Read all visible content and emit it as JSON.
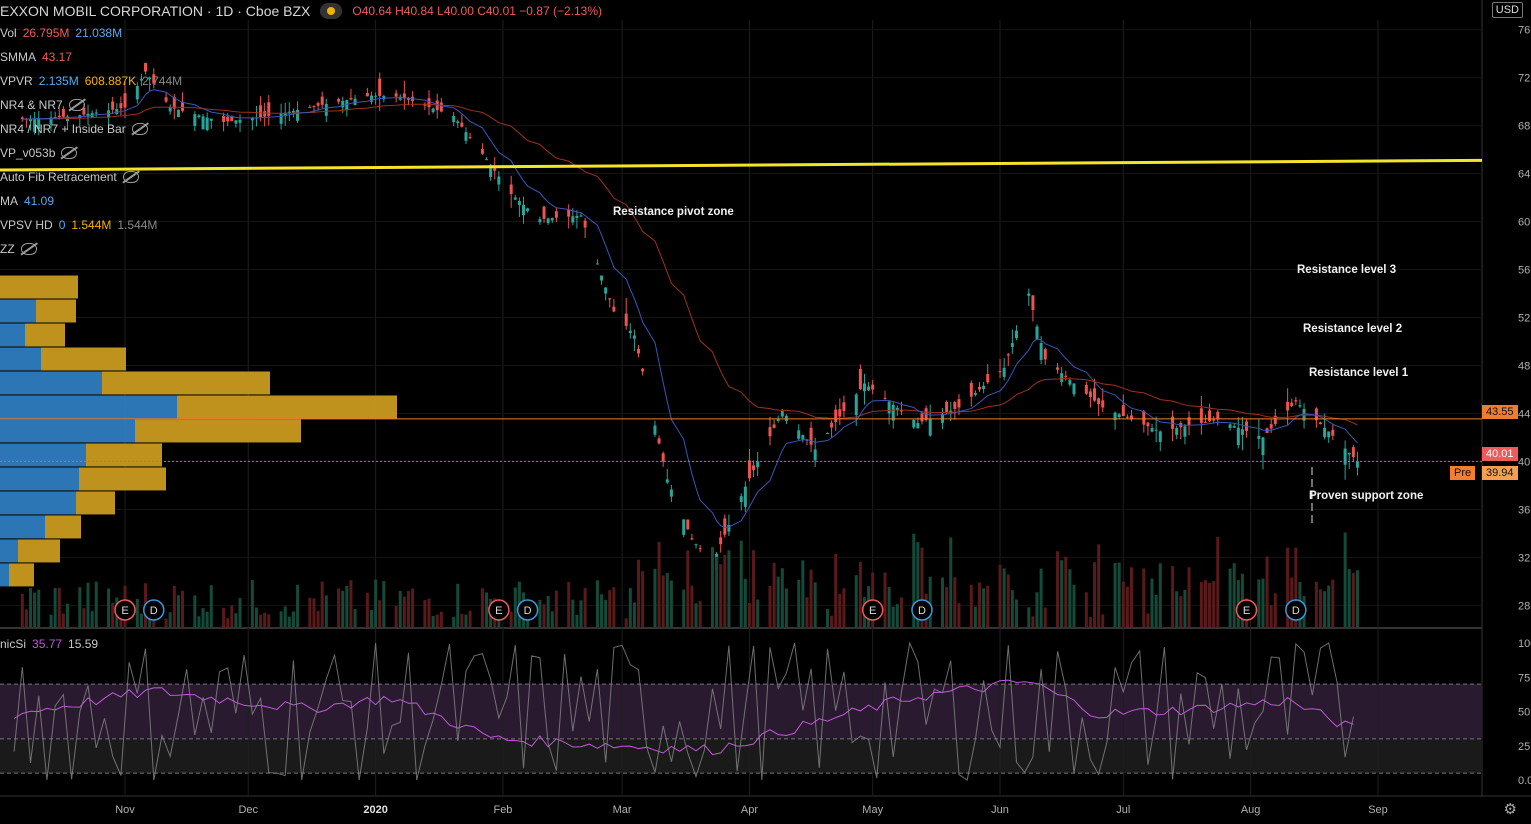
{
  "header": {
    "symbol": "EXXON MOBIL CORPORATION · 1D · Cboe BZX",
    "ohlc_open": "O40.64",
    "ohlc_high": "H40.84",
    "ohlc_low": "L40.00",
    "ohlc_close": "C40.01",
    "change": "−0.87 (−2.13%)",
    "currency": "USD"
  },
  "indicators": [
    {
      "name": "Vol",
      "v1": "26.795M",
      "v2": "21.038M",
      "c1": "#f05a5a",
      "c2": "#5aa8f0"
    },
    {
      "name": "SMMA",
      "v1": "43.17",
      "v2": "",
      "c1": "#f05a5a",
      "c2": ""
    },
    {
      "name": "VPVR",
      "v1": "2.135M",
      "v2": "608.887K",
      "v3": "2.744M",
      "c1": "#5aa8f0",
      "c2": "#f0b400"
    },
    {
      "name": "NR4 & NR7"
    },
    {
      "name": "NR4 / NR7 + Inside Bar"
    },
    {
      "name": "VP_v053b"
    },
    {
      "name": "Auto Fib Retracement"
    },
    {
      "name": "MA",
      "v1": "41.09",
      "c1": "#5aa8f0"
    },
    {
      "name": "VPSV HD",
      "v1": "0",
      "v2": "1.544M",
      "v3": "1.544M",
      "c1": "#5aa8f0",
      "c2": "#f0b400"
    },
    {
      "name": "ZZ"
    }
  ],
  "annotations": {
    "pivot": "Resistance pivot zone",
    "r3": "Resistance level 3",
    "r2": "Resistance level 2",
    "r1": "Resistance level 1",
    "support": "Proven support zone"
  },
  "price_tags": {
    "resistance": "43.55",
    "last": "40.01",
    "pre_label": "Pre",
    "pre_value": "39.94"
  },
  "osc": {
    "name": "nicSi",
    "v1": "35.77",
    "v2": "15.59"
  },
  "event_markers": [
    {
      "label": "E",
      "date": "2019-11-01",
      "color": "#f05a5a"
    },
    {
      "label": "D",
      "date": "2019-11-08",
      "color": "#3a9ad9"
    },
    {
      "label": "E",
      "date": "2020-01-31",
      "color": "#f05a5a"
    },
    {
      "label": "D",
      "date": "2020-02-07",
      "color": "#3a9ad9"
    },
    {
      "label": "E",
      "date": "2020-05-01",
      "color": "#f05a5a"
    },
    {
      "label": "D",
      "date": "2020-05-13",
      "color": "#3a9ad9"
    },
    {
      "label": "E",
      "date": "2020-07-31",
      "color": "#f05a5a"
    },
    {
      "label": "D",
      "date": "2020-08-12",
      "color": "#3a9ad9"
    }
  ],
  "chart_data": {
    "type": "candlestick",
    "x_axis_labels": [
      "Nov",
      "Dec",
      "2020",
      "Feb",
      "Mar",
      "Apr",
      "May",
      "Jun",
      "Jul",
      "Aug",
      "Sep"
    ],
    "x_axis_label_dates": [
      "2019-11-01",
      "2019-12-01",
      "2020-01-01",
      "2020-02-01",
      "2020-03-01",
      "2020-04-01",
      "2020-05-01",
      "2020-06-01",
      "2020-07-01",
      "2020-08-01",
      "2020-09-01"
    ],
    "y_ticks": [
      28,
      32,
      36,
      40,
      44,
      48,
      52,
      56,
      60,
      64,
      68,
      72,
      76
    ],
    "y_tick_labels": [
      "28.00",
      "32.00",
      "36.00",
      "40.00",
      "44.00",
      "48.00",
      "52.00",
      "56.00",
      "60.00",
      "64.00",
      "68.00",
      "72.00",
      "76.00"
    ],
    "ylim": [
      26.2,
      76.8
    ],
    "osc_ticks": [
      0,
      25,
      50,
      75,
      100
    ],
    "osc_tick_labels": [
      "0.00",
      "25.00",
      "50.00",
      "75.00",
      "100.00"
    ],
    "date_range": [
      "2019-10-05",
      "2020-09-25"
    ],
    "trend_line": {
      "from": {
        "date": "2019-10-01",
        "price": 64.3
      },
      "to": {
        "date": "2020-09-25",
        "price": 65.1
      },
      "color": "#f5e52a"
    },
    "horizontal_lines": [
      {
        "price": 43.55,
        "color": "#f08030",
        "style": "solid"
      },
      {
        "price": 40.01,
        "color": "#f05a5a",
        "style": "dotted"
      }
    ],
    "price_path": [
      {
        "date": "2019-10-05",
        "close": 68.5
      },
      {
        "date": "2019-10-20",
        "close": 68.8
      },
      {
        "date": "2019-11-01",
        "close": 69.5
      },
      {
        "date": "2019-11-06",
        "close": 72.5
      },
      {
        "date": "2019-11-12",
        "close": 69.5
      },
      {
        "date": "2019-11-25",
        "close": 68.3
      },
      {
        "date": "2019-12-06",
        "close": 68.8
      },
      {
        "date": "2019-12-20",
        "close": 69.8
      },
      {
        "date": "2019-12-31",
        "close": 70.5
      },
      {
        "date": "2020-01-07",
        "close": 70.4
      },
      {
        "date": "2020-01-20",
        "close": 68.8
      },
      {
        "date": "2020-01-28",
        "close": 65.2
      },
      {
        "date": "2020-02-03",
        "close": 62.3
      },
      {
        "date": "2020-02-10",
        "close": 60.2
      },
      {
        "date": "2020-02-20",
        "close": 60.5
      },
      {
        "date": "2020-02-28",
        "close": 52.5
      },
      {
        "date": "2020-03-04",
        "close": 50.5
      },
      {
        "date": "2020-03-09",
        "close": 43.0
      },
      {
        "date": "2020-03-12",
        "close": 38.5
      },
      {
        "date": "2020-03-18",
        "close": 33.5
      },
      {
        "date": "2020-03-23",
        "close": 31.5
      },
      {
        "date": "2020-03-31",
        "close": 37.9
      },
      {
        "date": "2020-04-09",
        "close": 44.2
      },
      {
        "date": "2020-04-17",
        "close": 41.0
      },
      {
        "date": "2020-04-29",
        "close": 46.5
      },
      {
        "date": "2020-05-12",
        "close": 43.2
      },
      {
        "date": "2020-05-22",
        "close": 44.5
      },
      {
        "date": "2020-06-02",
        "close": 47.8
      },
      {
        "date": "2020-06-08",
        "close": 54.0
      },
      {
        "date": "2020-06-12",
        "close": 48.5
      },
      {
        "date": "2020-06-26",
        "close": 44.5
      },
      {
        "date": "2020-07-10",
        "close": 42.5
      },
      {
        "date": "2020-07-24",
        "close": 43.5
      },
      {
        "date": "2020-08-04",
        "close": 42.0
      },
      {
        "date": "2020-08-12",
        "close": 45.0
      },
      {
        "date": "2020-08-20",
        "close": 42.5
      },
      {
        "date": "2020-08-27",
        "close": 40.01
      }
    ],
    "oscillator_path": [
      {
        "date": "2019-10-05",
        "value": 48
      },
      {
        "date": "2019-11-08",
        "value": 65
      },
      {
        "date": "2019-12-15",
        "value": 52
      },
      {
        "date": "2020-01-05",
        "value": 60
      },
      {
        "date": "2020-01-30",
        "value": 30
      },
      {
        "date": "2020-03-01",
        "value": 25
      },
      {
        "date": "2020-03-23",
        "value": 22
      },
      {
        "date": "2020-04-15",
        "value": 40
      },
      {
        "date": "2020-05-10",
        "value": 60
      },
      {
        "date": "2020-06-08",
        "value": 72
      },
      {
        "date": "2020-06-25",
        "value": 48
      },
      {
        "date": "2020-07-20",
        "value": 52
      },
      {
        "date": "2020-08-10",
        "value": 58
      },
      {
        "date": "2020-08-27",
        "value": 35.77
      }
    ],
    "volume_profile": [
      {
        "price": 54.5,
        "up": 0,
        "down": 78
      },
      {
        "price": 52.5,
        "up": 36,
        "down": 40
      },
      {
        "price": 50.5,
        "up": 25,
        "down": 40
      },
      {
        "price": 48.5,
        "up": 41,
        "down": 85
      },
      {
        "price": 46.5,
        "up": 102,
        "down": 168
      },
      {
        "price": 44.5,
        "up": 177,
        "down": 220
      },
      {
        "price": 42.5,
        "up": 135,
        "down": 166
      },
      {
        "price": 40.5,
        "up": 86,
        "down": 76
      },
      {
        "price": 38.5,
        "up": 79,
        "down": 87
      },
      {
        "price": 36.5,
        "up": 76,
        "down": 39
      },
      {
        "price": 34.5,
        "up": 45,
        "down": 36
      },
      {
        "price": 32.5,
        "up": 18,
        "down": 42
      },
      {
        "price": 30.5,
        "up": 9,
        "down": 25
      }
    ]
  }
}
